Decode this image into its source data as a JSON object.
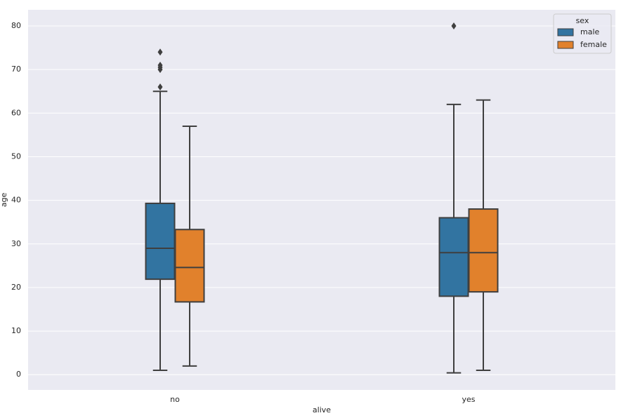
{
  "chart_data": {
    "type": "box",
    "x_label": "alive",
    "y_label": "age",
    "categories": [
      "no",
      "yes"
    ],
    "legend_title": "sex",
    "legend_position": "upper right",
    "grid": true,
    "ylim": [
      -3.5,
      83.7
    ],
    "yticks": [
      0,
      10,
      20,
      30,
      40,
      50,
      60,
      70,
      80
    ],
    "series": [
      {
        "name": "male",
        "color": "#3274a1",
        "whislo": [
          1,
          0.42
        ],
        "q1": [
          21.9,
          18
        ],
        "med": [
          29,
          28
        ],
        "q3": [
          39.3,
          36
        ],
        "whishi": [
          65,
          62
        ],
        "fliers": [
          [
            66,
            70,
            70.5,
            71,
            74
          ],
          [
            80
          ]
        ]
      },
      {
        "name": "female",
        "color": "#e1812c",
        "whislo": [
          2,
          1
        ],
        "q1": [
          16.7,
          19
        ],
        "med": [
          24.6,
          28
        ],
        "q3": [
          33.3,
          38
        ],
        "whishi": [
          57,
          63
        ],
        "fliers": [
          [],
          []
        ]
      }
    ]
  }
}
